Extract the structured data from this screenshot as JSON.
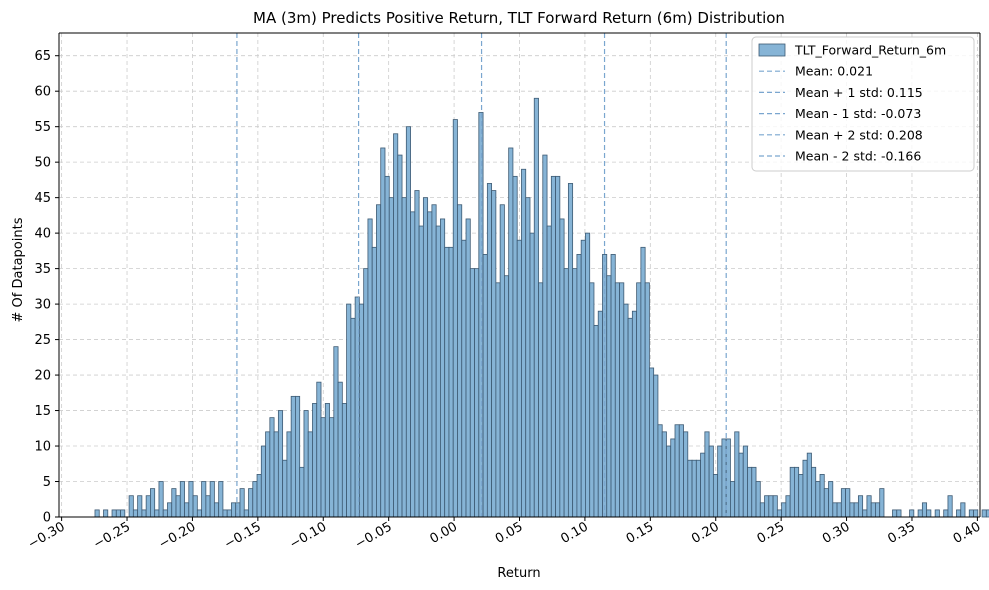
{
  "chart_data": {
    "type": "bar",
    "subtype": "histogram",
    "title": "MA (3m) Predicts Positive Return, TLT Forward Return (6m) Distribution",
    "xlabel": "Return",
    "ylabel": "# Of Datapoints",
    "xlim": [
      -0.302,
      0.402
    ],
    "ylim": [
      0,
      68.2
    ],
    "grid": true,
    "legend_position": "top-right",
    "bar_color": "#86b4d6",
    "edge_color": "#3d5a73",
    "x_ticks": [
      -0.3,
      -0.25,
      -0.2,
      -0.15,
      -0.1,
      -0.05,
      0.0,
      0.05,
      0.1,
      0.15,
      0.2,
      0.25,
      0.3,
      0.35,
      0.4
    ],
    "x_tick_labels": [
      "−0.30",
      "−0.25",
      "−0.20",
      "−0.15",
      "−0.10",
      "−0.05",
      "0.00",
      "0.05",
      "0.10",
      "0.15",
      "0.20",
      "0.25",
      "0.30",
      "0.35",
      "0.40"
    ],
    "y_ticks": [
      0,
      5,
      10,
      15,
      20,
      25,
      30,
      35,
      40,
      45,
      50,
      55,
      60,
      65
    ],
    "y_tick_labels": [
      "0",
      "5",
      "10",
      "15",
      "20",
      "25",
      "30",
      "35",
      "40",
      "45",
      "50",
      "55",
      "60",
      "65"
    ],
    "bin_start": -0.2745,
    "bin_width": 0.00326,
    "counts": [
      1,
      0,
      1,
      0,
      1,
      1,
      1,
      0,
      3,
      1,
      3,
      1,
      3,
      4,
      1,
      5,
      1,
      2,
      4,
      3,
      5,
      2,
      5,
      3,
      1,
      5,
      3,
      5,
      2,
      5,
      1,
      1,
      2,
      2,
      4,
      1,
      4,
      5,
      6,
      10,
      12,
      14,
      12,
      15,
      8,
      12,
      17,
      17,
      7,
      15,
      12,
      16,
      19,
      14,
      16,
      14,
      24,
      19,
      16,
      30,
      28,
      31,
      30,
      35,
      42,
      38,
      44,
      52,
      48,
      45,
      54,
      51,
      45,
      55,
      43,
      46,
      41,
      45,
      43,
      44,
      41,
      42,
      38,
      38,
      56,
      44,
      39,
      42,
      35,
      35,
      57,
      37,
      47,
      46,
      33,
      44,
      34,
      52,
      48,
      39,
      49,
      45,
      40,
      59,
      33,
      51,
      41,
      48,
      48,
      42,
      35,
      47,
      35,
      37,
      39,
      40,
      33,
      27,
      29,
      37,
      34,
      37,
      33,
      33,
      30,
      28,
      29,
      33,
      38,
      33,
      21,
      20,
      13,
      12,
      10,
      11,
      13,
      13,
      12,
      8,
      8,
      8,
      9,
      12,
      10,
      6,
      10,
      11,
      11,
      5,
      12,
      9,
      10,
      7,
      7,
      5,
      2,
      3,
      3,
      3,
      1,
      2,
      3,
      7,
      7,
      6,
      8,
      9,
      7,
      5,
      6,
      4,
      5,
      2,
      2,
      4,
      4,
      2,
      2,
      3,
      1,
      3,
      2,
      2,
      4,
      0,
      0,
      1,
      1,
      0,
      0,
      1,
      0,
      1,
      2,
      1,
      0,
      1,
      0,
      1,
      3,
      0,
      1,
      2,
      0,
      1,
      1,
      0,
      1,
      1,
      0,
      1
    ]
  },
  "legend": {
    "items": [
      {
        "label": "TLT_Forward_Return_6m",
        "kind": "patch"
      },
      {
        "label": "Mean: 0.021",
        "kind": "line",
        "value": 0.021
      },
      {
        "label": "Mean + 1 std: 0.115",
        "kind": "line",
        "value": 0.115
      },
      {
        "label": "Mean - 1 std: -0.073",
        "kind": "line",
        "value": -0.073
      },
      {
        "label": "Mean + 2 std: 0.208",
        "kind": "line",
        "value": 0.208
      },
      {
        "label": "Mean - 2 std: -0.166",
        "kind": "line",
        "value": -0.166
      }
    ]
  },
  "colors": {
    "reference_line": "#7aa6cf",
    "grid": "#cccccc",
    "axis": "#000000"
  }
}
